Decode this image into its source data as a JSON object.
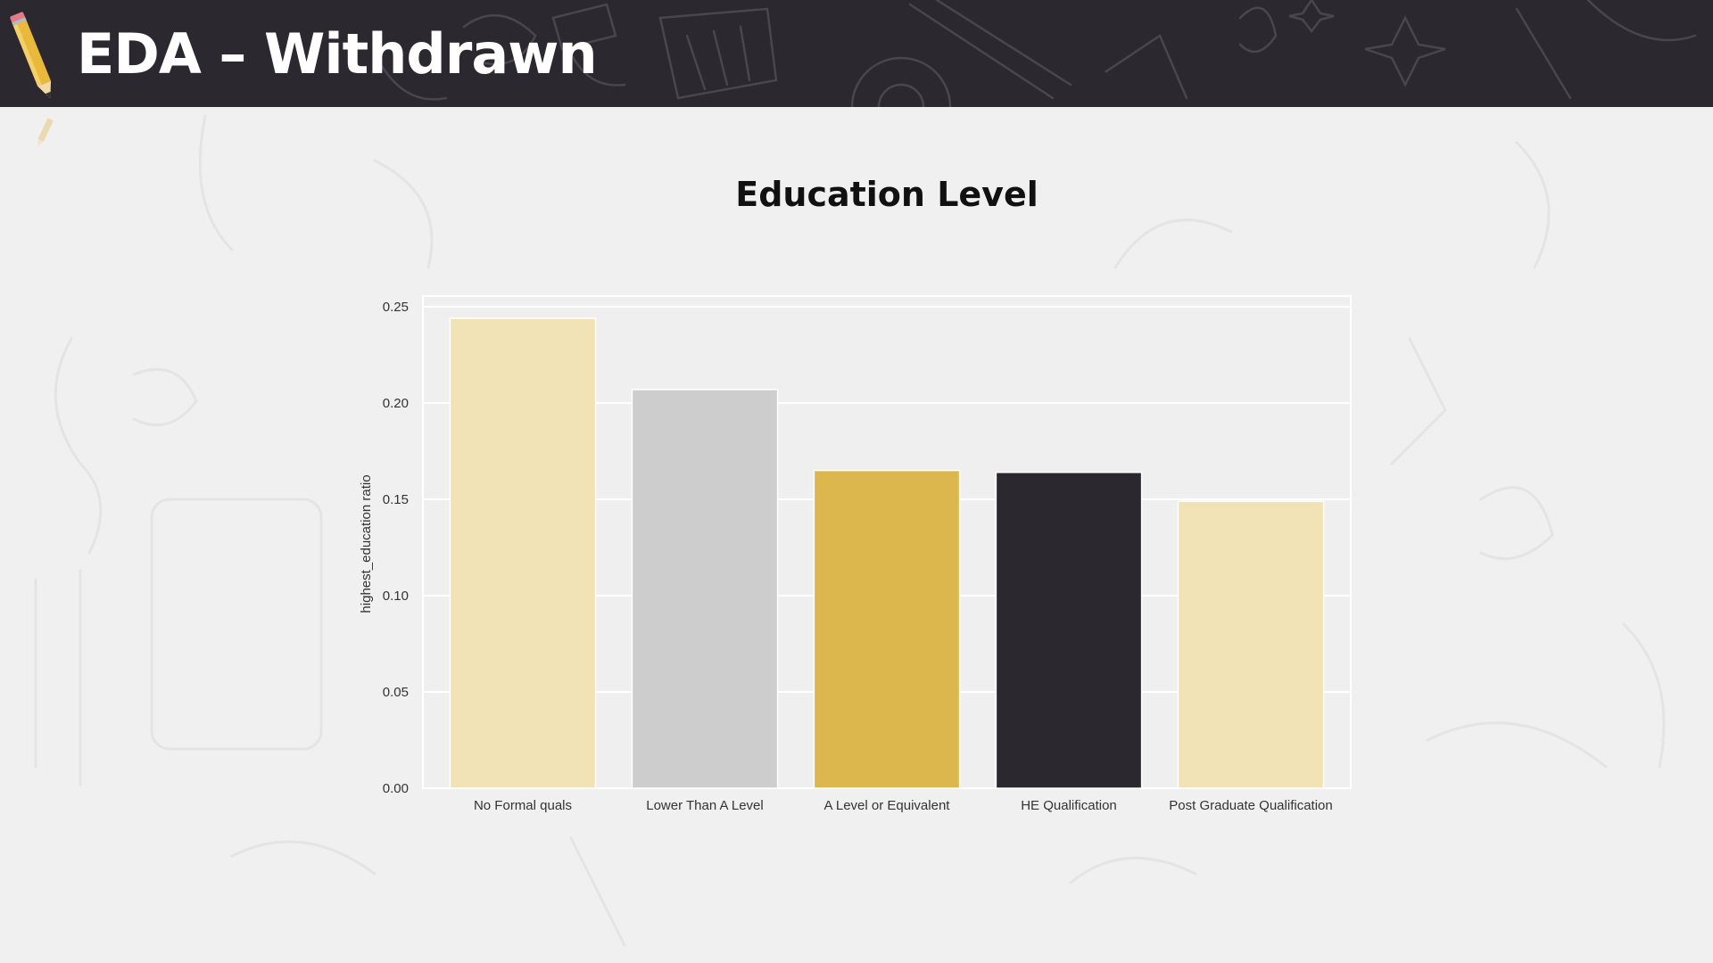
{
  "slide": {
    "title": "EDA – Withdrawn"
  },
  "colors": {
    "header_bg": "#2c2830",
    "page_bg": "#f0f0f0",
    "pencil_yellow": "#e8b93a"
  },
  "icons": {
    "header": "pencil-icon",
    "small": "pencil-icon"
  },
  "chart_data": {
    "type": "bar",
    "title": "Education Level",
    "xlabel": "",
    "ylabel": "highest_education ratio",
    "categories": [
      "No Formal quals",
      "Lower Than A Level",
      "A Level or Equivalent",
      "HE Qualification",
      "Post Graduate Qualification"
    ],
    "values": [
      0.244,
      0.207,
      0.165,
      0.164,
      0.149
    ],
    "bar_colors": [
      "#f1e3b6",
      "#cdcdcd",
      "#dcb74d",
      "#2c2830",
      "#f1e3b6"
    ],
    "ylim": [
      0,
      0.25
    ],
    "yticks": [
      "0.00",
      "0.05",
      "0.10",
      "0.15",
      "0.20",
      "0.25"
    ],
    "ytick_values": [
      0,
      0.05,
      0.1,
      0.15,
      0.2,
      0.25
    ],
    "grid": true,
    "legend": "none"
  }
}
